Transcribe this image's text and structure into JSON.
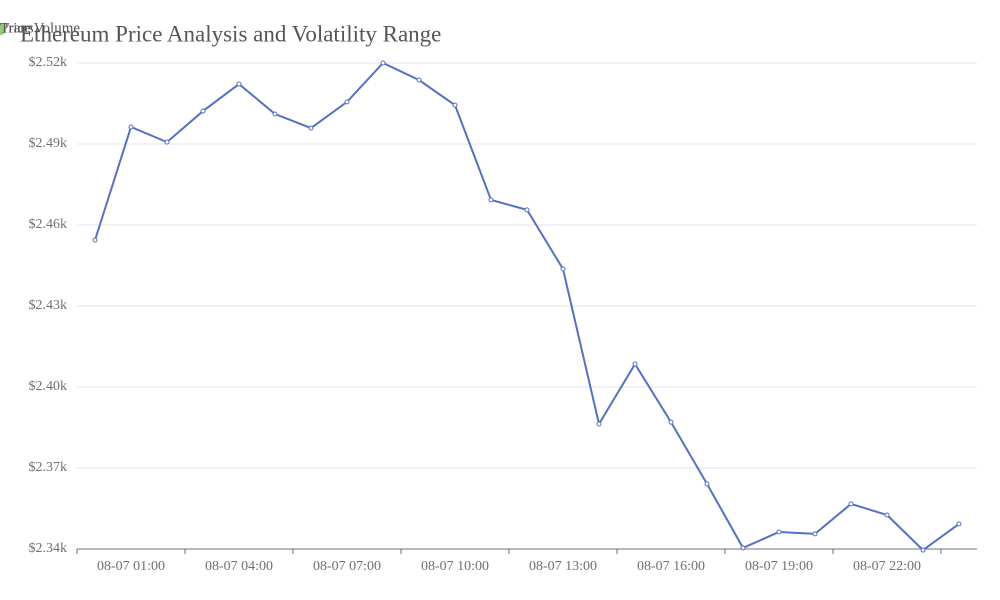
{
  "chart_data": {
    "type": "line",
    "title": "Ethereum Price Analysis and Volatility Range",
    "categories": [
      null,
      "08-07 01:00",
      null,
      null,
      "08-07 04:00",
      null,
      null,
      "08-07 07:00",
      null,
      null,
      "08-07 10:00",
      null,
      null,
      "08-07 13:00",
      null,
      null,
      "08-07 16:00",
      null,
      null,
      "08-07 19:00",
      null,
      null,
      "08-07 22:00",
      null,
      null
    ],
    "series": [
      {
        "name": "Price",
        "color": "#5470c6",
        "values": [
          2454.4,
          2496.3,
          2490.7,
          2502.2,
          2512.2,
          2501.1,
          2495.9,
          2505.6,
          2520,
          2513.7,
          2504.4,
          2469.3,
          2465.6,
          2443.7,
          2386.3,
          2408.5,
          2387,
          2364.1,
          2340.4,
          2346.3,
          2345.6,
          2356.7,
          2352.6,
          2339.6,
          2349.3
        ]
      },
      {
        "name": "TransVolume",
        "color": "#91cc75",
        "values": [
          null,
          null,
          null,
          null,
          null,
          null,
          null,
          null,
          null,
          null,
          null,
          null,
          null,
          null,
          null,
          null,
          null,
          null,
          null,
          null,
          null,
          null,
          null,
          null,
          null
        ]
      }
    ],
    "ylim": [
      2340,
      2520
    ],
    "yticks": [
      {
        "value": 2340,
        "label": "$2.34k"
      },
      {
        "value": 2370,
        "label": "$2.37k"
      },
      {
        "value": 2400,
        "label": "$2.40k"
      },
      {
        "value": 2430,
        "label": "$2.43k"
      },
      {
        "value": 2460,
        "label": "$2.46k"
      },
      {
        "value": 2490,
        "label": "$2.49k"
      },
      {
        "value": 2520,
        "label": "$2.52k"
      }
    ],
    "grid": true,
    "legend": "top-right"
  }
}
